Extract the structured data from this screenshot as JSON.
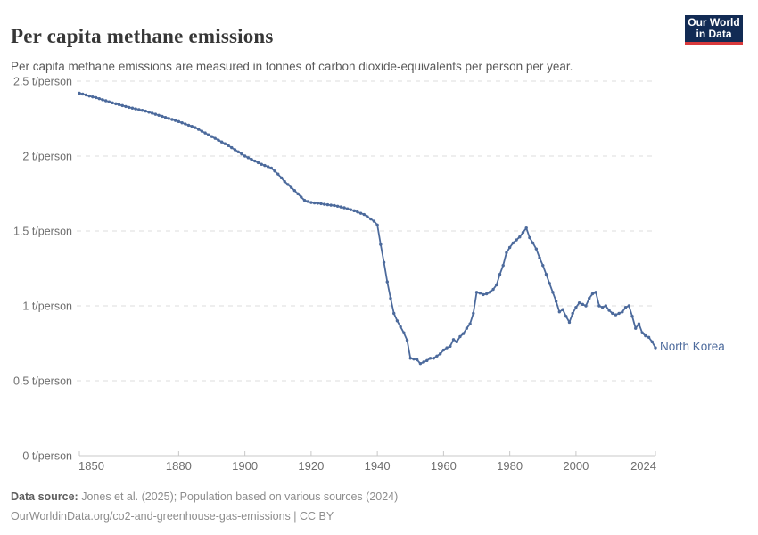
{
  "header": {
    "title": "Per capita methane emissions",
    "subtitle": "Per capita methane emissions are measured in tonnes of carbon dioxide-equivalents per person per year.",
    "logo": {
      "line1": "Our World",
      "line2": "in Data"
    }
  },
  "entity_label": "North Korea",
  "footer": {
    "datasource_label": "Data source:",
    "datasource_text": " Jones et al. (2025); Population based on various sources (2024)",
    "license_line": "OurWorldinData.org/co2-and-greenhouse-gas-emissions | CC BY"
  },
  "colors": {
    "line": "#4C6A9C",
    "grid": "#dedede",
    "axis": "#c8c8c8",
    "tick_text": "#6e6e6e",
    "title_text": "#373737",
    "subtitle_text": "#5a5a5a",
    "footer_text": "#8d8d8d",
    "logo_bg": "#122b54",
    "logo_stripe": "#d93a3c"
  },
  "chart_data": {
    "type": "line",
    "title": "Per capita methane emissions",
    "unit": "t/person",
    "xlabel": "",
    "ylabel": "",
    "xlim": [
      1850,
      2024
    ],
    "ylim": [
      0,
      2.5
    ],
    "grid": "horizontal-dashed",
    "legend": "inline-entity-label",
    "xticks": [
      {
        "value": 1850,
        "label": "1850"
      },
      {
        "value": 1880,
        "label": "1880"
      },
      {
        "value": 1900,
        "label": "1900"
      },
      {
        "value": 1920,
        "label": "1920"
      },
      {
        "value": 1940,
        "label": "1940"
      },
      {
        "value": 1960,
        "label": "1960"
      },
      {
        "value": 1980,
        "label": "1980"
      },
      {
        "value": 2000,
        "label": "2000"
      },
      {
        "value": 2024,
        "label": "2024"
      }
    ],
    "yticks": [
      {
        "value": 0,
        "label": "0 t/person"
      },
      {
        "value": 0.5,
        "label": "0.5 t/person"
      },
      {
        "value": 1,
        "label": "1 t/person"
      },
      {
        "value": 1.5,
        "label": "1.5 t/person"
      },
      {
        "value": 2,
        "label": "2 t/person"
      },
      {
        "value": 2.5,
        "label": "2.5 t/person"
      }
    ],
    "series": [
      {
        "name": "North Korea",
        "start_year": 1850,
        "step": 1,
        "values": [
          2.42,
          2.414,
          2.408,
          2.401,
          2.395,
          2.39,
          2.383,
          2.376,
          2.369,
          2.362,
          2.355,
          2.349,
          2.343,
          2.337,
          2.331,
          2.325,
          2.32,
          2.315,
          2.31,
          2.305,
          2.3,
          2.293,
          2.286,
          2.279,
          2.272,
          2.265,
          2.258,
          2.251,
          2.244,
          2.237,
          2.23,
          2.222,
          2.214,
          2.206,
          2.198,
          2.19,
          2.178,
          2.166,
          2.154,
          2.142,
          2.13,
          2.118,
          2.106,
          2.094,
          2.082,
          2.07,
          2.056,
          2.042,
          2.028,
          2.014,
          2.0,
          1.989,
          1.978,
          1.967,
          1.956,
          1.945,
          1.937,
          1.929,
          1.92,
          1.9,
          1.88,
          1.855,
          1.83,
          1.81,
          1.79,
          1.77,
          1.748,
          1.726,
          1.705,
          1.697,
          1.69,
          1.687,
          1.685,
          1.682,
          1.678,
          1.675,
          1.672,
          1.67,
          1.665,
          1.66,
          1.655,
          1.648,
          1.642,
          1.635,
          1.627,
          1.618,
          1.61,
          1.595,
          1.58,
          1.565,
          1.54,
          1.41,
          1.29,
          1.16,
          1.05,
          0.95,
          0.9,
          0.86,
          0.82,
          0.77,
          0.65,
          0.645,
          0.64,
          0.615,
          0.625,
          0.635,
          0.65,
          0.65,
          0.665,
          0.68,
          0.705,
          0.72,
          0.73,
          0.775,
          0.76,
          0.795,
          0.815,
          0.85,
          0.88,
          0.95,
          1.09,
          1.085,
          1.075,
          1.08,
          1.09,
          1.11,
          1.14,
          1.21,
          1.27,
          1.355,
          1.39,
          1.42,
          1.44,
          1.46,
          1.49,
          1.52,
          1.455,
          1.42,
          1.38,
          1.32,
          1.27,
          1.21,
          1.15,
          1.09,
          1.03,
          0.96,
          0.975,
          0.93,
          0.89,
          0.95,
          0.99,
          1.02,
          1.01,
          1.0,
          1.05,
          1.08,
          1.09,
          1.0,
          0.99,
          1.0,
          0.97,
          0.95,
          0.94,
          0.95,
          0.96,
          0.99,
          1.0,
          0.93,
          0.85,
          0.88,
          0.82,
          0.8,
          0.79,
          0.76,
          0.72
        ]
      }
    ]
  }
}
